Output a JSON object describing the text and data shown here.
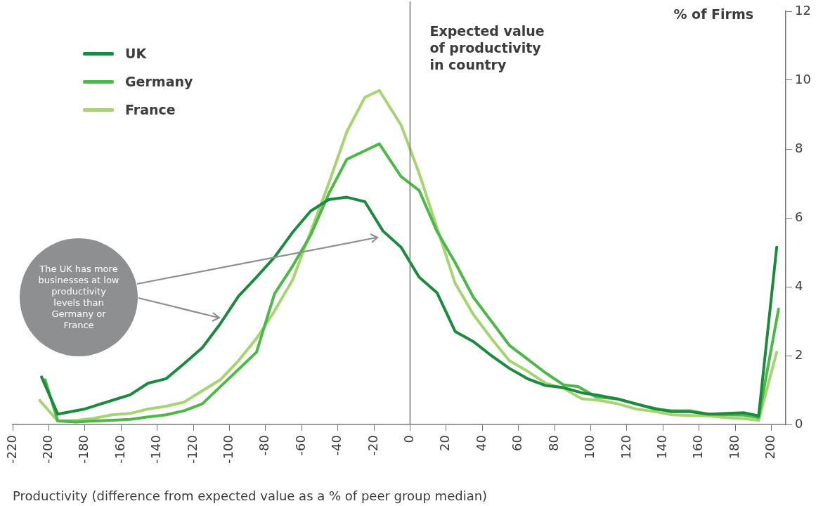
{
  "chart_data": {
    "type": "line",
    "xlabel": "Productivity (difference from expected value as a % of peer group median)",
    "ylabel": "% of Firms",
    "xlim": [
      -220,
      208
    ],
    "xticks": [
      -220,
      -200,
      -180,
      -160,
      -140,
      -120,
      -100,
      -80,
      -60,
      -40,
      -20,
      0,
      20,
      40,
      60,
      80,
      100,
      120,
      140,
      160,
      180,
      200
    ],
    "ylim": [
      0,
      12
    ],
    "yticks": [
      0,
      2,
      4,
      6,
      8,
      10,
      12
    ],
    "grid": false,
    "legend": "top left",
    "marker": "none",
    "line_style": "solid",
    "ref_lines": [
      {
        "axis": "x",
        "value": 0,
        "label": "Expected value of productivity in country",
        "color": "#777777"
      }
    ],
    "annotations": [
      "The UK has more businesses at low productivity levels than Germany or France"
    ],
    "series": [
      {
        "name": "UK",
        "color": "#1a8a3e",
        "x": [
          -204,
          -195,
          -180,
          -160,
          -155,
          -145,
          -135,
          -125,
          -115,
          -105,
          -95,
          -85,
          -75,
          -65,
          -55,
          -45,
          -35,
          -25,
          -15,
          -5,
          5,
          15,
          25,
          35,
          45,
          55,
          65,
          75,
          85,
          95,
          105,
          115,
          125,
          135,
          145,
          155,
          165,
          175,
          185,
          193,
          203
        ],
        "values": [
          1.38,
          0.3,
          0.45,
          0.78,
          0.86,
          1.2,
          1.33,
          1.77,
          2.23,
          2.93,
          3.72,
          4.28,
          4.86,
          5.58,
          6.2,
          6.53,
          6.6,
          6.47,
          5.62,
          5.15,
          4.28,
          3.82,
          2.7,
          2.41,
          2.0,
          1.63,
          1.33,
          1.13,
          1.07,
          0.92,
          0.84,
          0.74,
          0.6,
          0.47,
          0.37,
          0.37,
          0.3,
          0.32,
          0.34,
          0.25,
          5.15
        ]
      },
      {
        "name": "Germany",
        "color": "#4cb848",
        "x": [
          -202,
          -195,
          -185,
          -175,
          -165,
          -155,
          -145,
          -135,
          -125,
          -115,
          -105,
          -95,
          -85,
          -75,
          -65,
          -55,
          -45,
          -35,
          -25,
          -17,
          -5,
          5,
          15,
          25,
          35,
          45,
          55,
          65,
          75,
          85,
          93,
          103,
          115,
          125,
          135,
          145,
          155,
          165,
          175,
          185,
          193,
          204
        ],
        "values": [
          1.3,
          0.1,
          0.07,
          0.1,
          0.12,
          0.15,
          0.22,
          0.28,
          0.4,
          0.6,
          1.1,
          1.6,
          2.1,
          3.8,
          4.6,
          5.5,
          6.7,
          7.7,
          7.95,
          8.15,
          7.2,
          6.8,
          5.6,
          4.7,
          3.7,
          3.0,
          2.3,
          1.9,
          1.5,
          1.15,
          1.1,
          0.8,
          0.74,
          0.6,
          0.45,
          0.4,
          0.4,
          0.3,
          0.28,
          0.27,
          0.2,
          3.35
        ]
      },
      {
        "name": "France",
        "color": "#a6d473",
        "x": [
          -205,
          -195,
          -185,
          -175,
          -165,
          -155,
          -145,
          -135,
          -125,
          -115,
          -105,
          -95,
          -85,
          -75,
          -65,
          -55,
          -45,
          -35,
          -25,
          -17,
          -5,
          5,
          15,
          25,
          35,
          45,
          55,
          65,
          75,
          85,
          95,
          105,
          115,
          125,
          135,
          145,
          155,
          165,
          175,
          185,
          193,
          203
        ],
        "values": [
          0.7,
          0.1,
          0.12,
          0.18,
          0.28,
          0.32,
          0.45,
          0.53,
          0.65,
          0.98,
          1.3,
          1.85,
          2.5,
          3.3,
          4.2,
          5.6,
          7.0,
          8.5,
          9.5,
          9.7,
          8.7,
          7.3,
          5.7,
          4.1,
          3.2,
          2.5,
          1.85,
          1.55,
          1.2,
          1.05,
          0.75,
          0.7,
          0.6,
          0.45,
          0.38,
          0.28,
          0.26,
          0.25,
          0.2,
          0.17,
          0.12,
          2.1
        ]
      }
    ]
  }
}
